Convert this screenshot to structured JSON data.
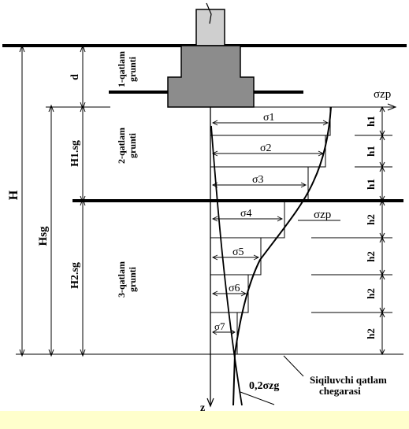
{
  "layers": {
    "layer1": [
      "1-qatlam",
      "grunti"
    ],
    "layer2": [
      "2-qatlam",
      "grunti"
    ],
    "layer3": [
      "3-qatlam",
      "grunti"
    ]
  },
  "dimensions": {
    "H": "H",
    "d": "d",
    "Hsg": "Hsg",
    "H1sg": "H1.sg",
    "H2sg": "H2.sg"
  },
  "sublayers": {
    "h1": [
      "h1",
      "h1",
      "h1"
    ],
    "h2": [
      "h2",
      "h2",
      "h2",
      "h2"
    ]
  },
  "stresses": {
    "sigma_zp": "σzp",
    "sigma_zp_curve": "σzp",
    "sigma_labels": [
      "σ1",
      "σ2",
      "σ3",
      "σ4",
      "σ5",
      "σ6",
      "σ7"
    ],
    "zg_label": "0,2σzg"
  },
  "boundary": {
    "line1": "Siqiluvchi qatlam",
    "line2": "chegarasi"
  },
  "axis": {
    "z": "z"
  },
  "colors": {
    "ground_line": "#000000",
    "footing_fill": "#8c8c8c",
    "column_fill": "#cfcfcf",
    "bottom_band": "#ffffcc"
  }
}
